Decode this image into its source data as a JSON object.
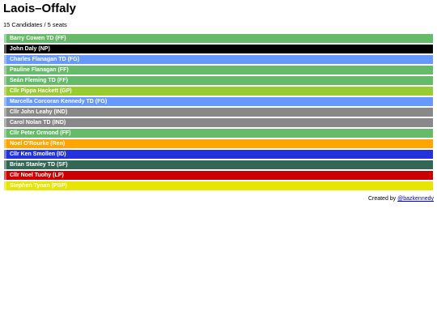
{
  "header": {
    "title": "Laois–Offaly",
    "subtitle": "15 Candidates / 5 seats"
  },
  "candidates": [
    {
      "name": "Barry Cowen TD (FF)",
      "color": "#66bb6a"
    },
    {
      "name": "John Daly (NP)",
      "color": "#000000"
    },
    {
      "name": "Charles Flanagan TD (FG)",
      "color": "#6699ff"
    },
    {
      "name": "Pauline Flanagan (FF)",
      "color": "#66bb6a"
    },
    {
      "name": "Seán Fleming TD (FF)",
      "color": "#66bb6a"
    },
    {
      "name": "Cllr Pippa Hackett (GP)",
      "color": "#99cc33"
    },
    {
      "name": "Marcella Corcoran Kennedy TD (FG)",
      "color": "#6699ff"
    },
    {
      "name": "Cllr John Leahy (IND)",
      "color": "#888888"
    },
    {
      "name": "Carol Nolan TD (IND)",
      "color": "#888888"
    },
    {
      "name": "Cllr Peter Ormond (FF)",
      "color": "#66bb6a"
    },
    {
      "name": "Noel O'Rourke (Ren)",
      "color": "#ffa500"
    },
    {
      "name": "Cllr Ken Smollen (ID)",
      "color": "#2233dd"
    },
    {
      "name": "Brian Stanley TD (SF)",
      "color": "#336655"
    },
    {
      "name": "Cllr Noel Tuohy (LP)",
      "color": "#cc0000"
    },
    {
      "name": "Stephen Tynan (PBP)",
      "color": "#e6e600"
    }
  ],
  "footer": {
    "text": "Created by",
    "link": "@bazkennedy"
  }
}
